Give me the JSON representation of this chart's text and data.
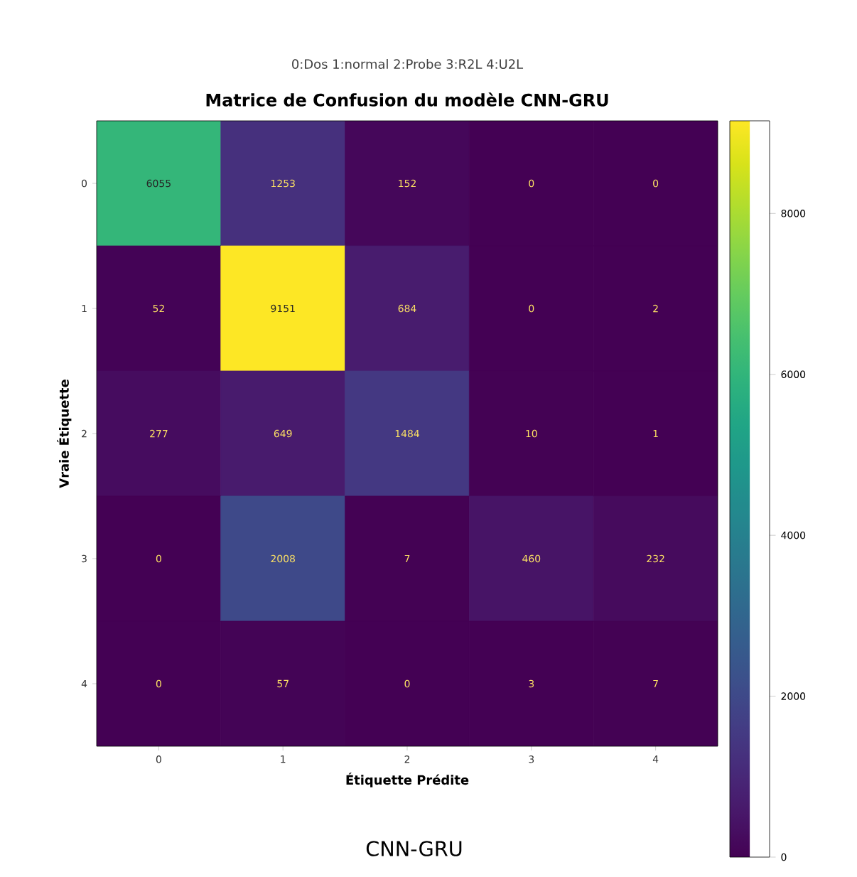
{
  "chart_data": {
    "type": "heatmap",
    "title": "Matrice de Confusion du modèle CNN-GRU",
    "subtitle": "0:Dos 1:normal 2:Probe 3:R2L 4:U2L",
    "xlabel": "Étiquette Prédite",
    "ylabel": "Vraie Étiquette",
    "annotations": [
      "CNN-GRU"
    ],
    "categories": [
      "0",
      "1",
      "2",
      "3",
      "4"
    ],
    "y_categories": [
      "0",
      "1",
      "2",
      "3",
      "4"
    ],
    "cells": [
      [
        6055,
        1253,
        152,
        0,
        0
      ],
      [
        52,
        9151,
        684,
        0,
        2
      ],
      [
        277,
        649,
        1484,
        10,
        1
      ],
      [
        0,
        2008,
        7,
        460,
        232
      ],
      [
        0,
        57,
        0,
        3,
        7
      ]
    ],
    "data_labels": true,
    "clim": [
      0,
      9151
    ],
    "cticks": [
      0,
      2000,
      4000,
      6000,
      8000
    ]
  }
}
